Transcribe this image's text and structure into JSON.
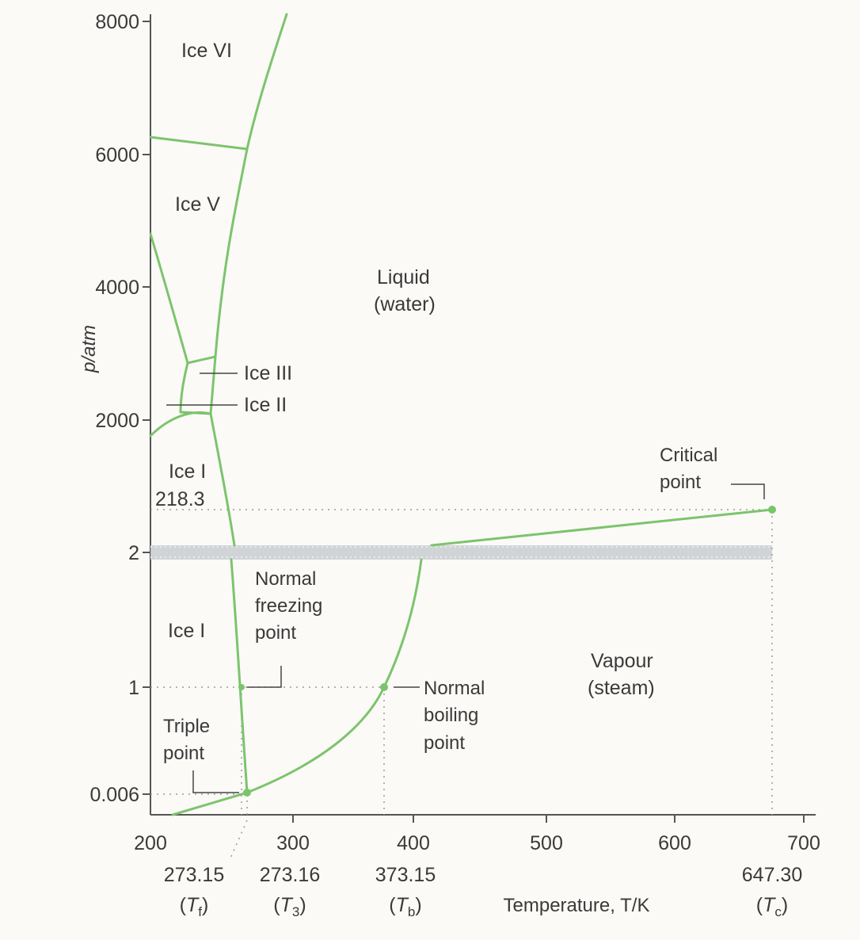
{
  "diagram": {
    "ylabel": "p/atm",
    "xlabel": "Temperature, T/K",
    "y_ticks": [
      "8000",
      "6000",
      "4000",
      "2000",
      "2",
      "1",
      "0.006"
    ],
    "x_ticks": [
      "200",
      "300",
      "400",
      "500",
      "600",
      "700"
    ],
    "special_temps": [
      {
        "value": "273.15",
        "symbol": "(Tf)",
        "sym": "T",
        "sub": "f"
      },
      {
        "value": "273.16",
        "symbol": "(T3)",
        "sym": "T",
        "sub": "3"
      },
      {
        "value": "373.15",
        "symbol": "(Tb)",
        "sym": "T",
        "sub": "b"
      },
      {
        "value": "647.30",
        "symbol": "(Tc)",
        "sym": "T",
        "sub": "c"
      }
    ],
    "regions": {
      "ice_vi": "Ice VI",
      "ice_v": "Ice V",
      "liquid_1": "Liquid",
      "liquid_2": "(water)",
      "ice_iii": "Ice III",
      "ice_ii": "Ice II",
      "ice_i_upper": "Ice I",
      "value_218": "218.3",
      "ice_i_lower": "Ice I",
      "vapour_1": "Vapour",
      "vapour_2": "(steam)"
    },
    "annotations": {
      "critical_1": "Critical",
      "critical_2": "point",
      "nfp_1": "Normal",
      "nfp_2": "freezing",
      "nfp_3": "point",
      "nbp_1": "Normal",
      "nbp_2": "boiling",
      "nbp_3": "point",
      "triple_1": "Triple",
      "triple_2": "point"
    },
    "colors": {
      "phase_line": "#7cc46c",
      "axis": "#555555",
      "band": "#c9cdd1"
    }
  }
}
